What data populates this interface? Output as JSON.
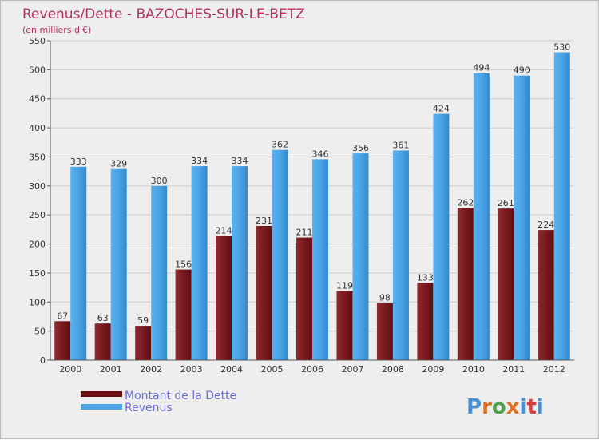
{
  "chart_data": {
    "type": "bar",
    "title": "Revenus/Dette - BAZOCHES-SUR-LE-BETZ",
    "subtitle": "(en milliers d'€)",
    "categories": [
      "2000",
      "2001",
      "2002",
      "2003",
      "2004",
      "2005",
      "2006",
      "2007",
      "2008",
      "2009",
      "2010",
      "2011",
      "2012"
    ],
    "series": [
      {
        "name": "Montant de la Dette",
        "color": "#7a1a1e",
        "values": [
          67,
          63,
          59,
          156,
          214,
          231,
          211,
          119,
          98,
          133,
          262,
          261,
          224
        ]
      },
      {
        "name": "Revenus",
        "color": "#4aa3e6",
        "values": [
          333,
          329,
          300,
          334,
          334,
          362,
          346,
          356,
          361,
          424,
          494,
          490,
          530
        ]
      }
    ],
    "ylim": [
      0,
      550
    ],
    "yticks": [
      0,
      50,
      100,
      150,
      200,
      250,
      300,
      350,
      400,
      450,
      500,
      550
    ],
    "xlabel": "",
    "ylabel": "",
    "grid": true,
    "legend": "bottom-left"
  },
  "branding": {
    "logo_text": "Proxiti",
    "logo_letters": [
      "P",
      "r",
      "o",
      "x",
      "i",
      "t",
      "i"
    ],
    "logo_colors": [
      "#4a90d0",
      "#e07020",
      "#50a050",
      "#e07020",
      "#4a90d0",
      "#d04040",
      "#4a90d0"
    ]
  }
}
